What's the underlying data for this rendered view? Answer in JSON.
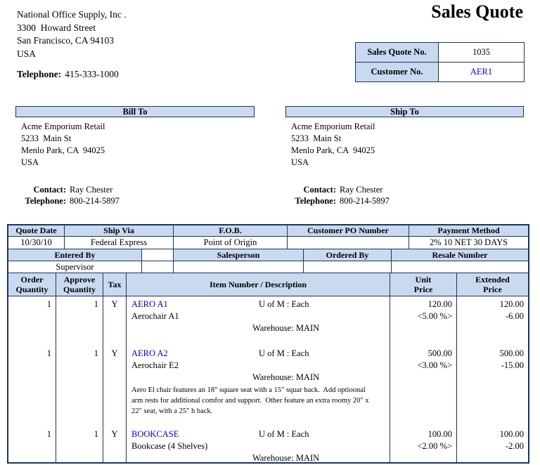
{
  "title": "Sales Quote",
  "company": {
    "name": "National Office Supply, Inc .",
    "address": "3300  Howard Street\nSan Francisco, CA 94103\nUSA",
    "phone_label": "Telephone:",
    "phone": "415-333-1000"
  },
  "quote_info": {
    "quote_no_label": "Sales Quote No.",
    "quote_no": "1035",
    "customer_no_label": "Customer No.",
    "customer_no": "AER1"
  },
  "bill_to": {
    "header": "Bill To",
    "address": "Acme Emporium Retail\n5233  Main St\nMenlo Park, CA  94025\nUSA",
    "contact_label": "Contact:",
    "contact": "Ray Chester",
    "phone_label": "Telephone:",
    "phone": "800-214-5897"
  },
  "ship_to": {
    "header": "Ship To",
    "address": "Acme Emporium Retail\n5233  Main St\nMenlo Park, CA  94025\nUSA",
    "contact_label": "Contact:",
    "contact": "Ray Chester",
    "phone_label": "Telephone:",
    "phone": "800-214-5897"
  },
  "order_info": {
    "headers1": [
      "Quote Date",
      "Ship Via",
      "F.O.B.",
      "Customer PO Number",
      "Payment Method"
    ],
    "values1": [
      "10/30/10",
      "Federal Express",
      "Point of Origin",
      "",
      "2% 10 NET 30 DAYS"
    ],
    "headers2": [
      "Entered By",
      "Salesperson",
      "Ordered By",
      "Resale Number"
    ],
    "values2": [
      "Supervisor",
      "",
      "",
      ""
    ]
  },
  "items_header": [
    "Order\nQuantity",
    "Approve\nQuantity",
    "Tax",
    "Item Number / Description",
    "Unit\nPrice",
    "Extended\nPrice"
  ],
  "items": [
    {
      "order_qty": "1",
      "approve_qty": "1",
      "tax": "Y",
      "item_number": "AERO A1",
      "uom": "U of M : Each",
      "description": "Aerochair A1",
      "warehouse": "Warehouse: MAIN",
      "unit_price": "120.00",
      "extended_price": "120.00",
      "discount": "<5.00 %>",
      "discount_ext": "-6.00",
      "long_description": ""
    },
    {
      "order_qty": "1",
      "approve_qty": "1",
      "tax": "Y",
      "item_number": "AERO A2",
      "uom": "U of M : Each",
      "description": "Aerochair E2",
      "warehouse": "Warehouse: MAIN",
      "unit_price": "500.00",
      "extended_price": "500.00",
      "discount": "<3.00 %>",
      "discount_ext": "-15.00",
      "long_description": "Aero El chair features an 18\" square seat with a 15\" squar back.  Add optioonal arm rests for additional comfor and support.  Other feature an extra roomy 20\" x 22\" seat, with a 25\" h back."
    },
    {
      "order_qty": "1",
      "approve_qty": "1",
      "tax": "Y",
      "item_number": "BOOKCASE",
      "uom": "U of M : Each",
      "description": "Bookcase (4 Shelves)",
      "warehouse": "Warehouse: MAIN",
      "unit_price": "100.00",
      "extended_price": "100.00",
      "discount": "<2.00 %>",
      "discount_ext": "-2.00",
      "long_description": ""
    }
  ],
  "colors": {
    "header_bg": "#C9D9F0",
    "border": "#1B365D",
    "link": "#0000CC"
  }
}
